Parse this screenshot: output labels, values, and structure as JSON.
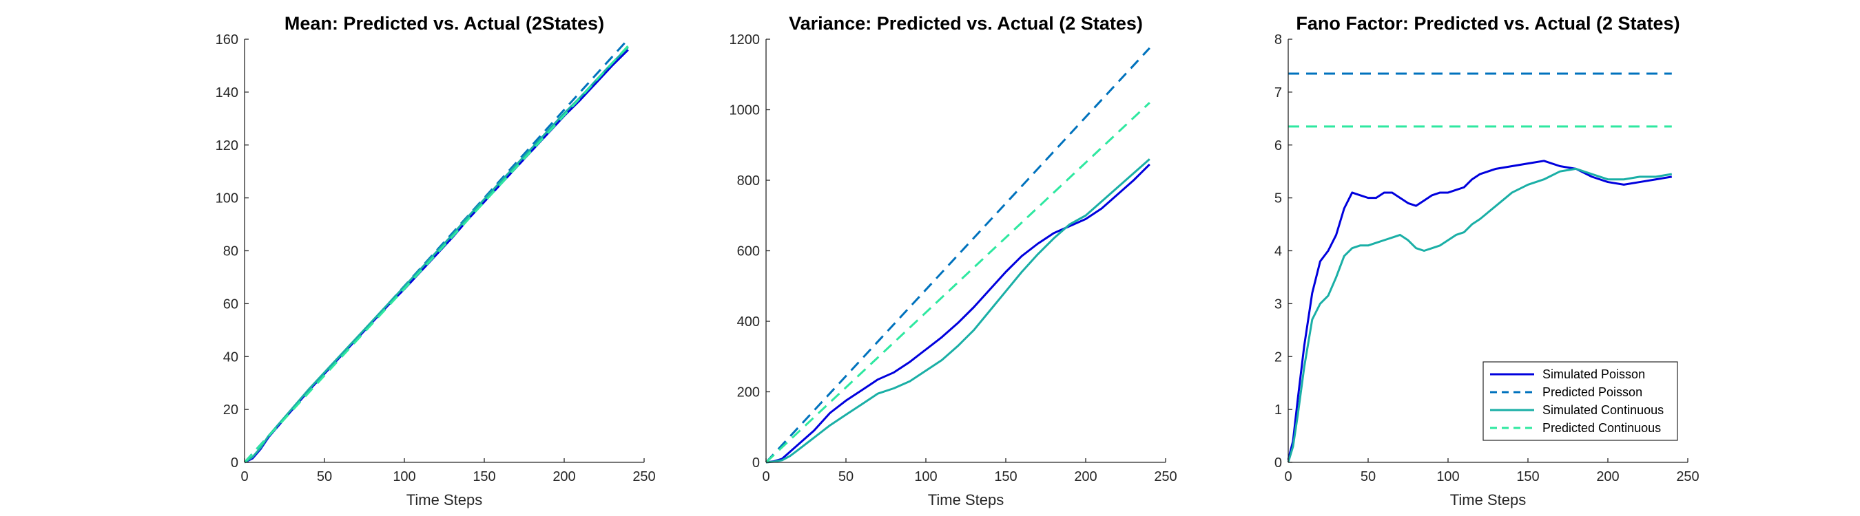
{
  "chart_data": [
    {
      "type": "line",
      "title": "Mean: Predicted vs. Actual (2States)",
      "xlabel": "Time Steps",
      "ylabel": "",
      "xlim": [
        0,
        250
      ],
      "ylim": [
        0,
        160
      ],
      "xticks": [
        0,
        50,
        100,
        150,
        200,
        250
      ],
      "yticks": [
        0,
        20,
        40,
        60,
        80,
        100,
        120,
        140,
        160
      ],
      "grid": false,
      "series": [
        {
          "color": "#0000dd",
          "dash": "solid",
          "x": [
            0,
            5,
            10,
            15,
            20,
            30,
            40,
            50,
            60,
            70,
            80,
            90,
            100,
            110,
            120,
            130,
            140,
            150,
            160,
            170,
            180,
            190,
            200,
            210,
            220,
            230,
            240
          ],
          "y": [
            0,
            1.5,
            5,
            9.5,
            13,
            20,
            27,
            33.5,
            40,
            46.5,
            53,
            59.5,
            65.5,
            72,
            78.5,
            85,
            92,
            98.5,
            105,
            111.5,
            118,
            124.5,
            131,
            137,
            143.5,
            150,
            156
          ]
        },
        {
          "color": "#0072bd",
          "dash": "dashed",
          "x": [
            0,
            240
          ],
          "y": [
            0,
            160
          ]
        },
        {
          "color": "#1aafa6",
          "dash": "solid",
          "x": [
            0,
            5,
            10,
            15,
            20,
            30,
            40,
            50,
            60,
            70,
            80,
            90,
            100,
            110,
            120,
            130,
            140,
            150,
            160,
            170,
            180,
            190,
            200,
            210,
            220,
            230,
            240
          ],
          "y": [
            0,
            2,
            5.5,
            10,
            13.5,
            20.5,
            27.5,
            34,
            40.5,
            47,
            53.5,
            60,
            66.5,
            73,
            79.5,
            86,
            93,
            99.5,
            106,
            112.5,
            119,
            125.5,
            132,
            138,
            144.5,
            151,
            157
          ]
        },
        {
          "color": "#2ee8a0",
          "dash": "dashed",
          "x": [
            0,
            240
          ],
          "y": [
            0,
            157.5
          ]
        }
      ]
    },
    {
      "type": "line",
      "title": "Variance: Predicted vs. Actual (2 States)",
      "xlabel": "Time Steps",
      "ylabel": "",
      "xlim": [
        0,
        250
      ],
      "ylim": [
        0,
        1200
      ],
      "xticks": [
        0,
        50,
        100,
        150,
        200,
        250
      ],
      "yticks": [
        0,
        200,
        400,
        600,
        800,
        1000,
        1200
      ],
      "grid": false,
      "series": [
        {
          "color": "#0000dd",
          "dash": "solid",
          "x": [
            0,
            5,
            10,
            15,
            20,
            30,
            40,
            50,
            60,
            70,
            80,
            90,
            100,
            110,
            120,
            130,
            140,
            150,
            160,
            170,
            180,
            190,
            200,
            210,
            220,
            230,
            240
          ],
          "y": [
            0,
            3,
            10,
            30,
            50,
            90,
            140,
            175,
            205,
            235,
            255,
            285,
            320,
            355,
            395,
            440,
            490,
            540,
            585,
            620,
            650,
            670,
            690,
            720,
            760,
            800,
            845
          ]
        },
        {
          "color": "#0072bd",
          "dash": "dashed",
          "x": [
            0,
            240
          ],
          "y": [
            0,
            1175
          ]
        },
        {
          "color": "#1aafa6",
          "dash": "solid",
          "x": [
            0,
            5,
            10,
            15,
            20,
            30,
            40,
            50,
            60,
            70,
            80,
            90,
            100,
            110,
            120,
            130,
            140,
            150,
            160,
            170,
            180,
            190,
            200,
            210,
            220,
            230,
            240
          ],
          "y": [
            0,
            2,
            6,
            18,
            35,
            70,
            105,
            135,
            165,
            195,
            210,
            230,
            260,
            290,
            330,
            375,
            430,
            485,
            540,
            590,
            635,
            675,
            700,
            740,
            780,
            820,
            860
          ]
        },
        {
          "color": "#2ee8a0",
          "dash": "dashed",
          "x": [
            0,
            240
          ],
          "y": [
            0,
            1020
          ]
        }
      ]
    },
    {
      "type": "line",
      "title": "Fano Factor: Predicted vs. Actual (2 States)",
      "xlabel": "Time Steps",
      "ylabel": "",
      "xlim": [
        0,
        250
      ],
      "ylim": [
        0,
        8
      ],
      "xticks": [
        0,
        50,
        100,
        150,
        200,
        250
      ],
      "yticks": [
        0,
        1,
        2,
        3,
        4,
        5,
        6,
        7,
        8
      ],
      "grid": false,
      "legend": "bottom-right",
      "series": [
        {
          "name": "Simulated Poisson",
          "color": "#0000dd",
          "dash": "solid",
          "x": [
            0,
            3,
            6,
            10,
            15,
            20,
            25,
            30,
            35,
            40,
            45,
            50,
            55,
            60,
            65,
            70,
            75,
            80,
            85,
            90,
            95,
            100,
            105,
            110,
            115,
            120,
            130,
            140,
            150,
            160,
            170,
            180,
            190,
            200,
            210,
            220,
            230,
            240
          ],
          "y": [
            0.05,
            0.4,
            1.2,
            2.2,
            3.2,
            3.8,
            4.0,
            4.3,
            4.8,
            5.1,
            5.05,
            5.0,
            5.0,
            5.1,
            5.1,
            5.0,
            4.9,
            4.85,
            4.95,
            5.05,
            5.1,
            5.1,
            5.15,
            5.2,
            5.35,
            5.45,
            5.55,
            5.6,
            5.65,
            5.7,
            5.6,
            5.55,
            5.4,
            5.3,
            5.25,
            5.3,
            5.35,
            5.4
          ]
        },
        {
          "name": "Predicted Poisson",
          "color": "#0072bd",
          "dash": "dashed",
          "x": [
            0,
            240
          ],
          "y": [
            7.35,
            7.35
          ]
        },
        {
          "name": "Simulated Continuous",
          "color": "#1aafa6",
          "dash": "solid",
          "x": [
            0,
            3,
            6,
            10,
            15,
            20,
            25,
            30,
            35,
            40,
            45,
            50,
            55,
            60,
            65,
            70,
            75,
            80,
            85,
            90,
            95,
            100,
            105,
            110,
            115,
            120,
            130,
            140,
            150,
            160,
            170,
            180,
            190,
            200,
            210,
            220,
            230,
            240
          ],
          "y": [
            0.0,
            0.3,
            0.9,
            1.8,
            2.7,
            3.0,
            3.15,
            3.5,
            3.9,
            4.05,
            4.1,
            4.1,
            4.15,
            4.2,
            4.25,
            4.3,
            4.2,
            4.05,
            4.0,
            4.05,
            4.1,
            4.2,
            4.3,
            4.35,
            4.5,
            4.6,
            4.85,
            5.1,
            5.25,
            5.35,
            5.5,
            5.55,
            5.45,
            5.35,
            5.35,
            5.4,
            5.4,
            5.45
          ]
        },
        {
          "name": "Predicted Continuous",
          "color": "#2ee8a0",
          "dash": "dashed",
          "x": [
            0,
            240
          ],
          "y": [
            6.35,
            6.35
          ]
        }
      ]
    }
  ]
}
